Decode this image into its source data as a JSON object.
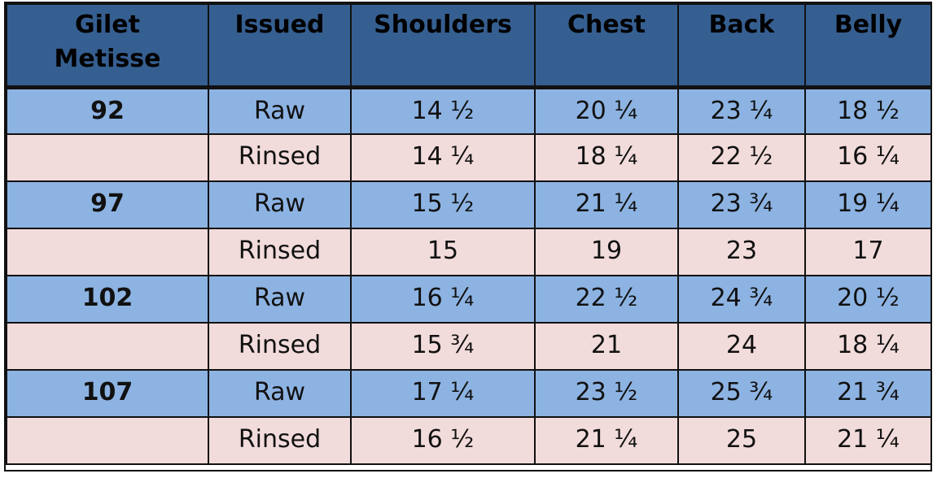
{
  "table": {
    "headers": [
      "Gilet Metisse",
      "Issued",
      "Shoulders",
      "Chest",
      "Back",
      "Belly"
    ],
    "header_line1": "Gilet",
    "header_line2": "Metisse",
    "rows": [
      {
        "size": "92",
        "issued": "Raw",
        "shoulders": "14 ½",
        "chest": "20 ¼",
        "back": "23 ¼",
        "belly": "18 ½"
      },
      {
        "size": "",
        "issued": "Rinsed",
        "shoulders": "14 ¼",
        "chest": "18 ¼",
        "back": "22 ½",
        "belly": "16 ¼"
      },
      {
        "size": "97",
        "issued": "Raw",
        "shoulders": "15 ½",
        "chest": "21 ¼",
        "back": "23 ¾",
        "belly": "19 ¼"
      },
      {
        "size": "",
        "issued": "Rinsed",
        "shoulders": "15",
        "chest": "19",
        "back": "23",
        "belly": "17"
      },
      {
        "size": "102",
        "issued": "Raw",
        "shoulders": "16 ¼",
        "chest": "22 ½",
        "back": "24 ¾",
        "belly": "20 ½"
      },
      {
        "size": "",
        "issued": "Rinsed",
        "shoulders": "15 ¾",
        "chest": "21",
        "back": "24",
        "belly": "18 ¼"
      },
      {
        "size": "107",
        "issued": "Raw",
        "shoulders": "17 ¼",
        "chest": "23 ½",
        "back": "25 ¾",
        "belly": "21 ¾"
      },
      {
        "size": "",
        "issued": "Rinsed",
        "shoulders": "16 ½",
        "chest": "21 ¼",
        "back": "25",
        "belly": "21 ¼"
      }
    ]
  },
  "colors": {
    "header_bg": "#365f91",
    "raw_row_bg": "#8db3e2",
    "rinsed_row_bg": "#f2dcdb",
    "border": "#111111"
  }
}
